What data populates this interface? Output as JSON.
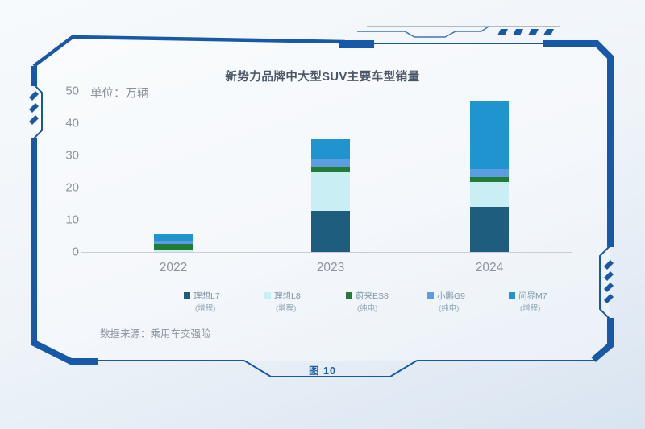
{
  "title": "新势力品牌中大型SUV主要车型销量",
  "figure_label": "图 10",
  "source": "数据来源：乘用车交强险",
  "frame_color": "#1759a8",
  "chart_data": {
    "type": "bar",
    "stacked": true,
    "title": "新势力品牌中大型SUV主要车型销量",
    "ylabel": "单位：万辆",
    "unit_label": "单位：万辆",
    "categories": [
      "2022",
      "2023",
      "2024"
    ],
    "series": [
      {
        "name": "理想L7",
        "sub": "(增程)",
        "color": "#1f5d7e",
        "values": [
          0,
          12.8,
          14.0
        ]
      },
      {
        "name": "理想L8",
        "sub": "(增程)",
        "color": "#c9eff5",
        "values": [
          0.8,
          12.0,
          7.8
        ]
      },
      {
        "name": "蔚来ES8",
        "sub": "(纯电)",
        "color": "#217d36",
        "values": [
          1.8,
          1.5,
          1.5
        ]
      },
      {
        "name": "小鹏G9",
        "sub": "(纯电)",
        "color": "#5b9de0",
        "values": [
          0.9,
          2.5,
          2.5
        ]
      },
      {
        "name": "问界M7",
        "sub": "(增程)",
        "color": "#2094cf",
        "values": [
          2.0,
          6.2,
          21.0
        ]
      }
    ],
    "yticks": [
      0,
      10,
      20,
      30,
      40,
      50
    ],
    "ylim": [
      0,
      50
    ],
    "grid": false,
    "legend_position": "bottom"
  }
}
